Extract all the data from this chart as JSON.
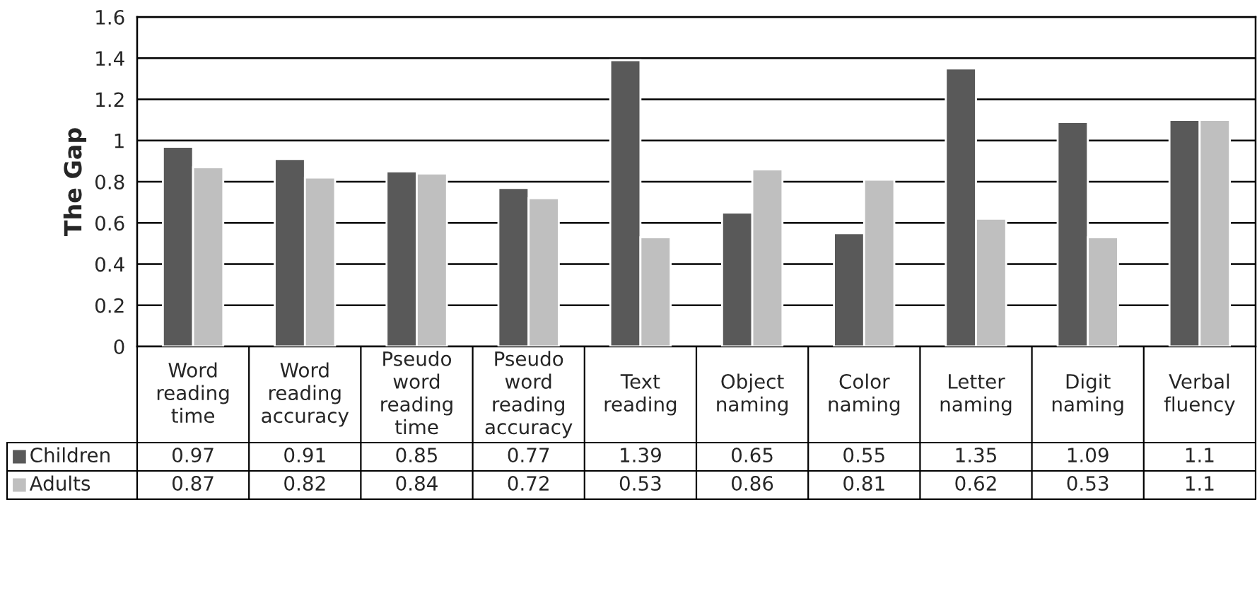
{
  "chart_data": {
    "type": "bar",
    "ylabel": "The Gap",
    "categories": [
      "Word reading time",
      "Word reading accuracy",
      "Pseudo word reading time",
      "Pseudo word reading accuracy",
      "Text reading",
      "Object naming",
      "Color naming",
      "Letter naming",
      "Digit naming",
      "Verbal fluency"
    ],
    "series": [
      {
        "name": "Children",
        "color": "#595959",
        "values": [
          0.97,
          0.91,
          0.85,
          0.77,
          1.39,
          0.65,
          0.55,
          1.35,
          1.09,
          1.1
        ]
      },
      {
        "name": "Adults",
        "color": "#bfbfbf",
        "values": [
          0.87,
          0.82,
          0.84,
          0.72,
          0.53,
          0.86,
          0.81,
          0.62,
          0.53,
          1.1
        ]
      }
    ],
    "ylim": [
      0,
      1.6
    ],
    "yticks": [
      0,
      0.2,
      0.4,
      0.6,
      0.8,
      1,
      1.2,
      1.4,
      1.6
    ],
    "grid": "y",
    "legend": "bottom",
    "data_labels": true
  }
}
